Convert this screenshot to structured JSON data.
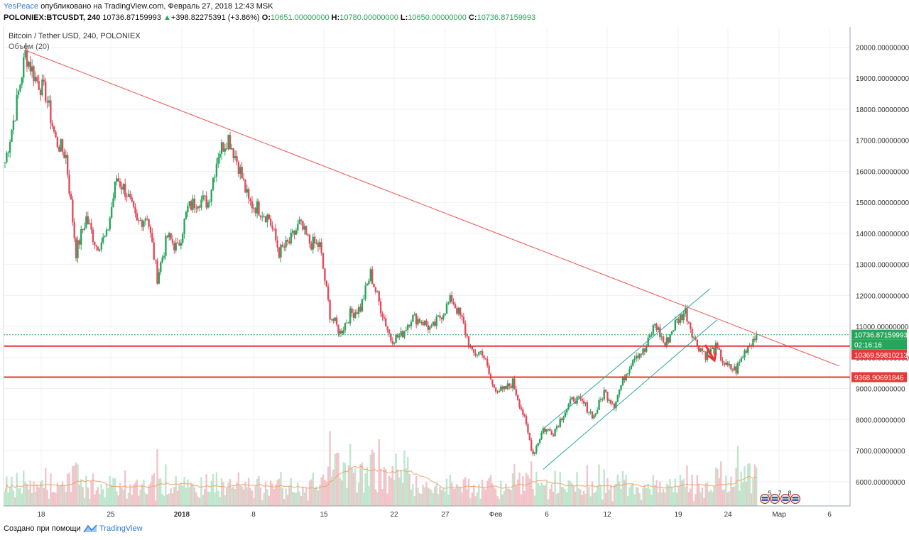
{
  "header": {
    "author": "YesPeace",
    "published_text": "опубликовано на TradingView.com, Февраль 27, 2018 12:43 MSK",
    "symbol": "POLONIEX:BTCUSDT, 240",
    "last_price": "10736.87159993",
    "change_arrow": "▲",
    "change": "+398.82275391 (+3.86%)",
    "o_label": "O:",
    "o_value": "10651.00000000",
    "h_label": "H:",
    "h_value": "10780.00000000",
    "l_label": "L:",
    "l_value": "10650.00000000",
    "c_label": "C:",
    "c_value": "10736.87159993"
  },
  "legend": {
    "title": "Bitcoin / Tether USD, 240, POLONIEX",
    "volume": "Объём (20)"
  },
  "price_labels": {
    "last": "10736.87159993",
    "countdown": "02:16:16",
    "resistance": "10369.59810213",
    "support": "9368.90691846"
  },
  "event_badges": [
    "5",
    "7",
    "8"
  ],
  "footer": {
    "made_with": "Создано при помощи",
    "brand": "TradingView"
  },
  "colors": {
    "up": "#26a65b",
    "down": "#e24a5c",
    "trendline": "#ef5350",
    "level": "#e53935",
    "channel": "#26a69a",
    "volume_ma": "#f0a46e",
    "brand": "#2e7bd6"
  },
  "chart_data": {
    "type": "candlestick",
    "symbol": "POLONIEX:BTCUSDT",
    "interval": "240",
    "y_ticks": [
      "20000.00000000",
      "19000.00000000",
      "18000.00000000",
      "17000.00000000",
      "16000.00000000",
      "15000.00000000",
      "14000.00000000",
      "13000.00000000",
      "12000.00000000",
      "11000.00000000",
      "10000.00000000",
      "9000.00000000",
      "8000.00000000",
      "7000.00000000",
      "6000.00000000"
    ],
    "ylim": [
      5300,
      20700
    ],
    "x_ticks": [
      "18",
      "25",
      "2018",
      "8",
      "15",
      "22",
      "27",
      "Фев",
      "6",
      "12",
      "19",
      "24",
      "Мар",
      "6"
    ],
    "price_path": [
      {
        "t": "Dec 15",
        "p": 16300
      },
      {
        "t": "Dec 16",
        "p": 17900
      },
      {
        "t": "Dec 17",
        "p": 19800
      },
      {
        "t": "Dec 18",
        "p": 19000
      },
      {
        "t": "Dec 19",
        "p": 18500
      },
      {
        "t": "Dec 20",
        "p": 17000
      },
      {
        "t": "Dec 21",
        "p": 16500
      },
      {
        "t": "Dec 22",
        "p": 13400
      },
      {
        "t": "Dec 23",
        "p": 14500
      },
      {
        "t": "Dec 24",
        "p": 13600
      },
      {
        "t": "Dec 25",
        "p": 13900
      },
      {
        "t": "Dec 26",
        "p": 15800
      },
      {
        "t": "Dec 27",
        "p": 15300
      },
      {
        "t": "Dec 28",
        "p": 14300
      },
      {
        "t": "Dec 29",
        "p": 14600
      },
      {
        "t": "Dec 30",
        "p": 12600
      },
      {
        "t": "Dec 31",
        "p": 13900
      },
      {
        "t": "Jan 1",
        "p": 13500
      },
      {
        "t": "Jan 2",
        "p": 14800
      },
      {
        "t": "Jan 3",
        "p": 15100
      },
      {
        "t": "Jan 4",
        "p": 15000
      },
      {
        "t": "Jan 5",
        "p": 16600
      },
      {
        "t": "Jan 6",
        "p": 17100
      },
      {
        "t": "Jan 7",
        "p": 16200
      },
      {
        "t": "Jan 8",
        "p": 15000
      },
      {
        "t": "Jan 9",
        "p": 14800
      },
      {
        "t": "Jan 10",
        "p": 14500
      },
      {
        "t": "Jan 11",
        "p": 13400
      },
      {
        "t": "Jan 12",
        "p": 13700
      },
      {
        "t": "Jan 13",
        "p": 14300
      },
      {
        "t": "Jan 14",
        "p": 13700
      },
      {
        "t": "Jan 15",
        "p": 13600
      },
      {
        "t": "Jan 16",
        "p": 11400
      },
      {
        "t": "Jan 17",
        "p": 10800
      },
      {
        "t": "Jan 18",
        "p": 11400
      },
      {
        "t": "Jan 19",
        "p": 11600
      },
      {
        "t": "Jan 20",
        "p": 12700
      },
      {
        "t": "Jan 21",
        "p": 11600
      },
      {
        "t": "Jan 22",
        "p": 10600
      },
      {
        "t": "Jan 23",
        "p": 10700
      },
      {
        "t": "Jan 24",
        "p": 11300
      },
      {
        "t": "Jan 25",
        "p": 11200
      },
      {
        "t": "Jan 26",
        "p": 10900
      },
      {
        "t": "Jan 27",
        "p": 11400
      },
      {
        "t": "Jan 28",
        "p": 11900
      },
      {
        "t": "Jan 29",
        "p": 11200
      },
      {
        "t": "Jan 30",
        "p": 10100
      },
      {
        "t": "Jan 31",
        "p": 10200
      },
      {
        "t": "Feb 1",
        "p": 9100
      },
      {
        "t": "Feb 2",
        "p": 8900
      },
      {
        "t": "Feb 3",
        "p": 9200
      },
      {
        "t": "Feb 4",
        "p": 8200
      },
      {
        "t": "Feb 5",
        "p": 6900
      },
      {
        "t": "Feb 6",
        "p": 7700
      },
      {
        "t": "Feb 7",
        "p": 7600
      },
      {
        "t": "Feb 8",
        "p": 8200
      },
      {
        "t": "Feb 9",
        "p": 8700
      },
      {
        "t": "Feb 10",
        "p": 8500
      },
      {
        "t": "Feb 11",
        "p": 8100
      },
      {
        "t": "Feb 12",
        "p": 8900
      },
      {
        "t": "Feb 13",
        "p": 8500
      },
      {
        "t": "Feb 14",
        "p": 9400
      },
      {
        "t": "Feb 15",
        "p": 10100
      },
      {
        "t": "Feb 16",
        "p": 10200
      },
      {
        "t": "Feb 17",
        "p": 11100
      },
      {
        "t": "Feb 18",
        "p": 10400
      },
      {
        "t": "Feb 19",
        "p": 11100
      },
      {
        "t": "Feb 20",
        "p": 11500
      },
      {
        "t": "Feb 21",
        "p": 10500
      },
      {
        "t": "Feb 22",
        "p": 10100
      },
      {
        "t": "Feb 23",
        "p": 10300
      },
      {
        "t": "Feb 24",
        "p": 9700
      },
      {
        "t": "Feb 25",
        "p": 9600
      },
      {
        "t": "Feb 26",
        "p": 10300
      },
      {
        "t": "Feb 27",
        "p": 10736.87
      }
    ],
    "annotations": {
      "trendline": {
        "from": {
          "t": "Dec 17",
          "p": 19900
        },
        "to": {
          "t": "Mar 5",
          "p": 10000
        }
      },
      "resistance_level": 10369.59810213,
      "support_level": 9368.90691846,
      "channel_upper": {
        "from": {
          "t": "Feb 6",
          "p": 7700
        },
        "to": {
          "t": "Feb 22",
          "p": 12100
        }
      },
      "channel_lower": {
        "from": {
          "t": "Feb 6",
          "p": 6400
        },
        "to": {
          "t": "Feb 22",
          "p": 10900
        }
      }
    }
  }
}
